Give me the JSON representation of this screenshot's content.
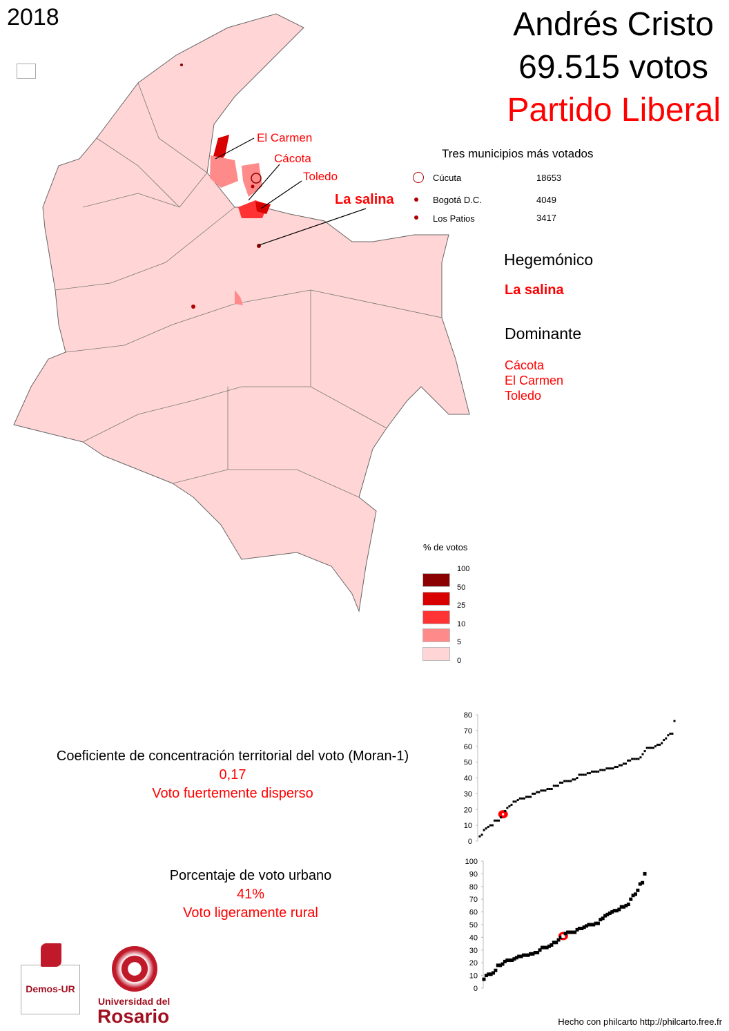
{
  "year": "2018",
  "candidate": "Andrés Cristo",
  "votes": "69.515 votos",
  "party": "Partido Liberal",
  "map_labels": [
    "El Carmen",
    "Cácota",
    "Toledo",
    "La salina"
  ],
  "top_municipalities": {
    "title": "Tres municipios más votados",
    "items": [
      {
        "name": "Cúcuta",
        "votes": "18653",
        "symbol": "large-circle-outline"
      },
      {
        "name": "Bogotá D.C.",
        "votes": "4049",
        "symbol": "dot"
      },
      {
        "name": "Los Patios",
        "votes": "3417",
        "symbol": "dot"
      }
    ]
  },
  "hegemonic": {
    "title": "Hegemónico",
    "items": [
      "La salina"
    ]
  },
  "dominant": {
    "title": "Dominante",
    "items": [
      "Cácota",
      "El Carmen",
      "Toledo"
    ]
  },
  "legend": {
    "title": "% de votos",
    "breaks": [
      "100",
      "50",
      "25",
      "10",
      "5",
      "0"
    ],
    "colors": [
      "#8b0000",
      "#d90000",
      "#ff3333",
      "#ff8a8a",
      "#ffd5d5"
    ]
  },
  "moran": {
    "title": "Coeficiente de concentración territorial del voto (Moran-1)",
    "value": "0,17",
    "label": "Voto fuertemente disperso"
  },
  "urban": {
    "title": "Porcentaje de voto urbano",
    "value": "41%",
    "label": "Voto ligeramente rural"
  },
  "logos": {
    "demos": "Demos-UR",
    "university_line1": "Universidad del",
    "university_line2": "Rosario"
  },
  "footer": "Hecho con philcarto http://philcarto.free.fr",
  "chart_data": [
    {
      "type": "scatter",
      "ylim": [
        0,
        80
      ],
      "yticks": [
        "0",
        "10",
        "20",
        "30",
        "40",
        "50",
        "60",
        "70",
        "80"
      ],
      "values": [
        3,
        4,
        7,
        8,
        9,
        10,
        10,
        13,
        13,
        13,
        15,
        17,
        19,
        21,
        22,
        23,
        25,
        25,
        26,
        27,
        27,
        27,
        28,
        28,
        28,
        30,
        30,
        31,
        31,
        32,
        32,
        32,
        33,
        33,
        33,
        35,
        35,
        35,
        37,
        37,
        38,
        38,
        38,
        38,
        39,
        39,
        40,
        42,
        42,
        42,
        42,
        43,
        43,
        44,
        44,
        44,
        44,
        45,
        45,
        45,
        46,
        46,
        46,
        46,
        47,
        47,
        48,
        48,
        49,
        49,
        51,
        51,
        52,
        52,
        52,
        52,
        53,
        55,
        57,
        59,
        59,
        59,
        59,
        60,
        61,
        61,
        62,
        64,
        65,
        67,
        68,
        68,
        76
      ],
      "highlight": 17,
      "color_points": "#000000",
      "color_highlight": "#ff0000"
    },
    {
      "type": "scatter",
      "ylim": [
        0,
        100
      ],
      "yticks": [
        "0",
        "10",
        "20",
        "30",
        "40",
        "50",
        "60",
        "70",
        "80",
        "90",
        "100"
      ],
      "values": [
        7,
        10,
        11,
        11,
        12,
        14,
        18,
        18,
        19,
        21,
        22,
        22,
        22,
        23,
        24,
        25,
        25,
        26,
        26,
        26,
        27,
        27,
        28,
        28,
        30,
        32,
        32,
        32,
        33,
        34,
        36,
        36,
        38,
        40,
        41,
        43,
        44,
        44,
        44,
        44,
        46,
        47,
        47,
        48,
        49,
        50,
        50,
        50,
        51,
        51,
        54,
        55,
        57,
        58,
        59,
        60,
        61,
        61,
        62,
        64,
        64,
        65,
        66,
        70,
        73,
        74,
        77,
        82,
        83,
        90
      ],
      "highlight": 41,
      "color_points": "#000000",
      "color_highlight": "#ff0000"
    }
  ]
}
